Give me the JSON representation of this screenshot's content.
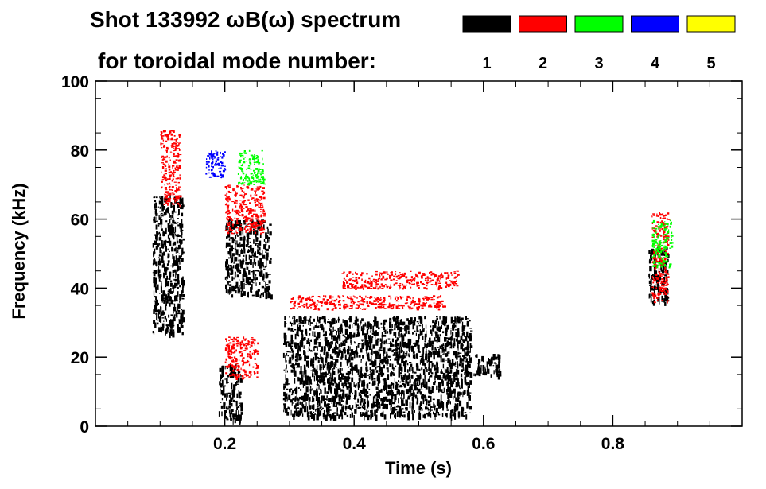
{
  "title_line1": "Shot 133992 ωB(ω) spectrum",
  "title_line2": "for toroidal mode number:",
  "chart_data": {
    "type": "scatter",
    "xlabel": "Time (s)",
    "ylabel": "Frequency (kHz)",
    "xlim": [
      0.0,
      1.0
    ],
    "ylim": [
      0,
      100
    ],
    "xticks": [
      0.2,
      0.4,
      0.6,
      0.8
    ],
    "xtick_labels": [
      "0.2",
      "0.4",
      "0.6",
      "0.8"
    ],
    "yticks": [
      0,
      20,
      40,
      60,
      80,
      100
    ],
    "ytick_labels": [
      "0",
      "20",
      "40",
      "60",
      "80",
      "100"
    ],
    "grid": false,
    "legend_placement": "top",
    "series": [
      {
        "name": "1",
        "color": "#000000",
        "regions": [
          {
            "x": [
              0.088,
              0.135
            ],
            "y": [
              27,
              67
            ]
          },
          {
            "x": [
              0.19,
              0.225
            ],
            "y": [
              2,
              18
            ]
          },
          {
            "x": [
              0.2,
              0.27
            ],
            "y": [
              38,
              60
            ]
          },
          {
            "x": [
              0.29,
              0.58
            ],
            "y": [
              3,
              32
            ]
          },
          {
            "x": [
              0.57,
              0.625
            ],
            "y": [
              15,
              21
            ]
          },
          {
            "x": [
              0.855,
              0.885
            ],
            "y": [
              36,
              52
            ]
          }
        ]
      },
      {
        "name": "2",
        "color": "#ff0000",
        "regions": [
          {
            "x": [
              0.1,
              0.13
            ],
            "y": [
              64,
              86
            ]
          },
          {
            "x": [
              0.2,
              0.26
            ],
            "y": [
              56,
              70
            ]
          },
          {
            "x": [
              0.2,
              0.25
            ],
            "y": [
              14,
              26
            ]
          },
          {
            "x": [
              0.3,
              0.38
            ],
            "y": [
              34,
              38
            ]
          },
          {
            "x": [
              0.38,
              0.54
            ],
            "y": [
              34,
              38
            ]
          },
          {
            "x": [
              0.38,
              0.56
            ],
            "y": [
              40,
              45
            ]
          },
          {
            "x": [
              0.86,
              0.885
            ],
            "y": [
              36,
              62
            ]
          }
        ]
      },
      {
        "name": "3",
        "color": "#00ff00",
        "regions": [
          {
            "x": [
              0.86,
              0.89
            ],
            "y": [
              46,
              60
            ]
          },
          {
            "x": [
              0.22,
              0.26
            ],
            "y": [
              70,
              80
            ]
          }
        ]
      },
      {
        "name": "4",
        "color": "#0000ff",
        "regions": [
          {
            "x": [
              0.17,
              0.2
            ],
            "y": [
              72,
              80
            ]
          }
        ]
      },
      {
        "name": "5",
        "color": "#ffff00",
        "regions": []
      }
    ]
  }
}
